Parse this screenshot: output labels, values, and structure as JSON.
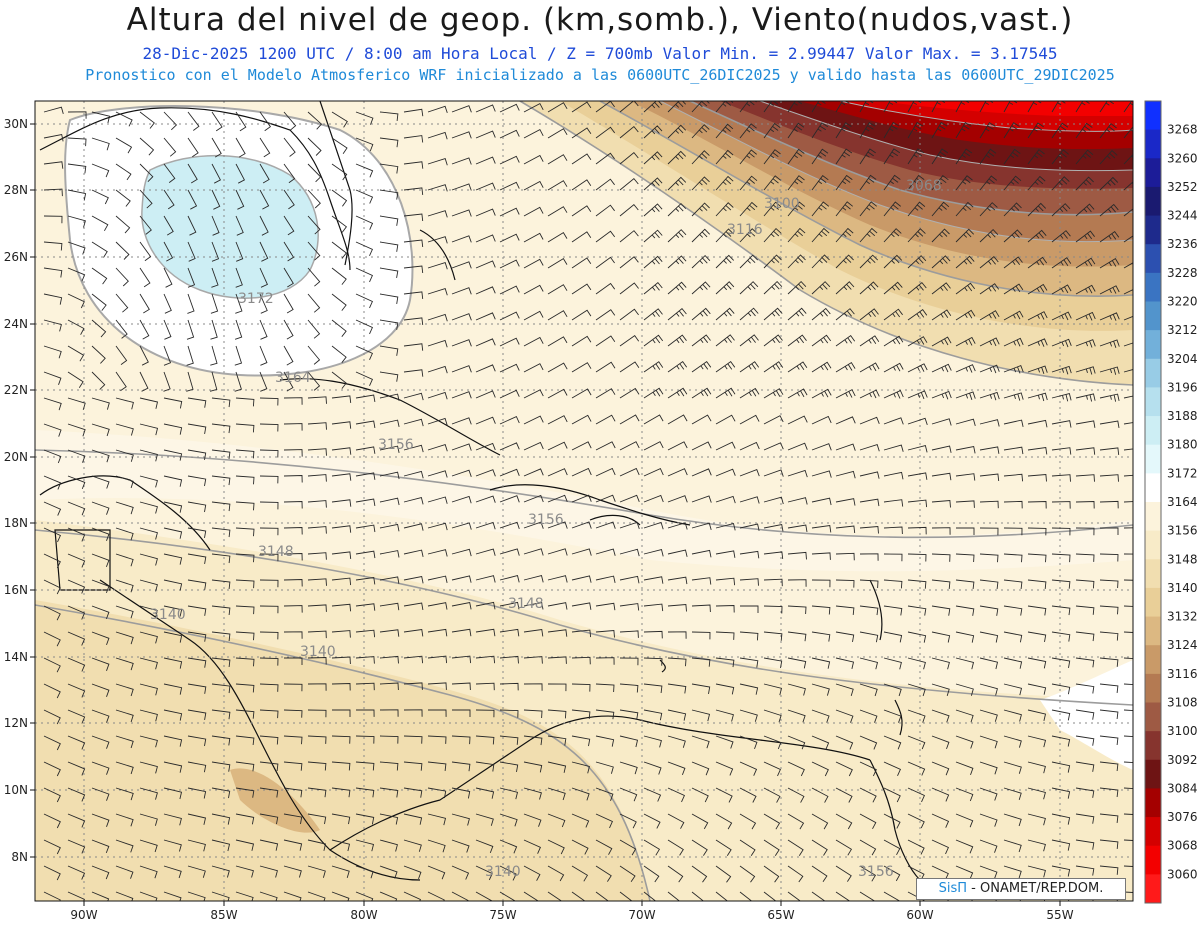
{
  "header": {
    "title": "Altura del nivel de geop. (km,somb.), Viento(nudos,vast.)",
    "line1": "28-Dic-2025   1200 UTC / 8:00 am Hora Local / Z = 700mb    Valor Min. = 2.99447  Valor Max. = 3.17545",
    "line2": "Pronostico con el Modelo Atmosferico WRF inicializado a las 0600UTC_26DIC2025 y valido hasta las  0600UTC_29DIC2025"
  },
  "map": {
    "lon_ticks": [
      "90W",
      "85W",
      "80W",
      "75W",
      "70W",
      "65W",
      "60W",
      "55W"
    ],
    "lat_ticks": [
      "30N",
      "28N",
      "26N",
      "24N",
      "22N",
      "20N",
      "18N",
      "16N",
      "14N",
      "12N",
      "10N",
      "8N"
    ],
    "contour_labels": [
      "3172",
      "3156",
      "3156",
      "3148",
      "3148",
      "3140",
      "3140",
      "3140",
      "3156",
      "3100",
      "3068",
      "3116",
      "3164"
    ]
  },
  "colorbar": {
    "levels": [
      "3268",
      "3260",
      "3252",
      "3244",
      "3236",
      "3228",
      "3220",
      "3212",
      "3204",
      "3196",
      "3188",
      "3180",
      "3172",
      "3164",
      "3156",
      "3148",
      "3140",
      "3132",
      "3124",
      "3116",
      "3108",
      "3100",
      "3092",
      "3084",
      "3076",
      "3068",
      "3060"
    ],
    "colors": [
      "#1030ff",
      "#1a28c8",
      "#1c1c98",
      "#1a1a70",
      "#1e2a8c",
      "#2c50b0",
      "#3a74c2",
      "#5294cc",
      "#72b0da",
      "#98cce6",
      "#b6e0ee",
      "#cdeef4",
      "#e4f8fb",
      "#ffffff",
      "#fcf3dc",
      "#f8ebc8",
      "#f1deb0",
      "#e9cf98",
      "#dcb882",
      "#c99a68",
      "#b47a52",
      "#9e5a44",
      "#86342e",
      "#6e1414",
      "#a40000",
      "#d40000",
      "#f30000",
      "#ff1a1a"
    ]
  },
  "credit": {
    "logo": "SisΠ",
    "text": "- ONAMET/REP.DOM."
  }
}
